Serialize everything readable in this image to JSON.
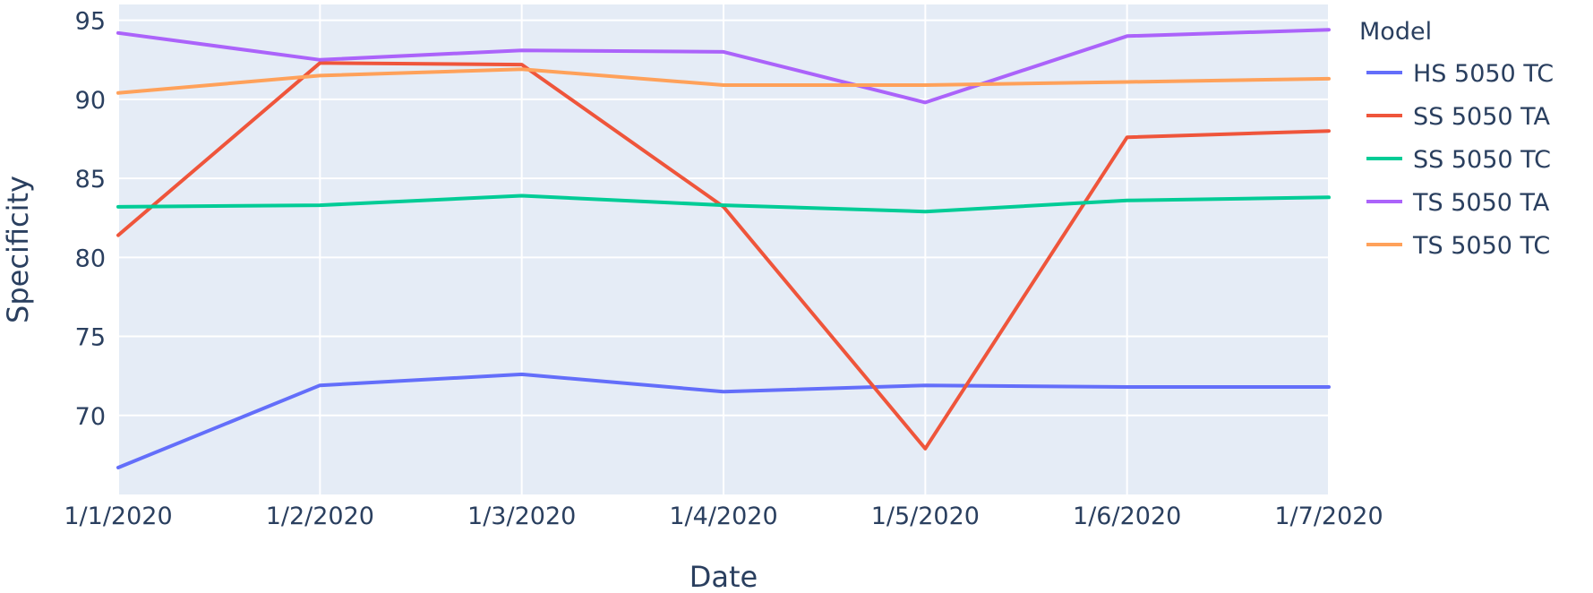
{
  "chart_data": {
    "type": "line",
    "x": [
      "1/1/2020",
      "1/2/2020",
      "1/3/2020",
      "1/4/2020",
      "1/5/2020",
      "1/6/2020",
      "1/7/2020"
    ],
    "xlabel": "Date",
    "ylabel": "Specificity",
    "ylim": [
      65,
      96
    ],
    "yticks": [
      70,
      75,
      80,
      85,
      90,
      95
    ],
    "grid": true,
    "legend": {
      "title": "Model",
      "placement": "right"
    },
    "series": [
      {
        "name": "HS 5050 TC",
        "color": "#636efa",
        "values": [
          66.7,
          71.9,
          72.6,
          71.5,
          71.9,
          71.8,
          71.8
        ]
      },
      {
        "name": "SS 5050 TA",
        "color": "#ef553b",
        "values": [
          81.4,
          92.3,
          92.2,
          83.2,
          67.9,
          87.6,
          88.0
        ]
      },
      {
        "name": "SS 5050 TC",
        "color": "#00cc96",
        "values": [
          83.2,
          83.3,
          83.9,
          83.3,
          82.9,
          83.6,
          83.8
        ]
      },
      {
        "name": "TS 5050 TA",
        "color": "#ab63fa",
        "values": [
          94.2,
          92.5,
          93.1,
          93.0,
          89.8,
          94.0,
          94.4
        ]
      },
      {
        "name": "TS 5050 TC",
        "color": "#ffa15a",
        "values": [
          90.4,
          91.5,
          91.9,
          90.9,
          90.9,
          91.1,
          91.3
        ]
      }
    ]
  }
}
